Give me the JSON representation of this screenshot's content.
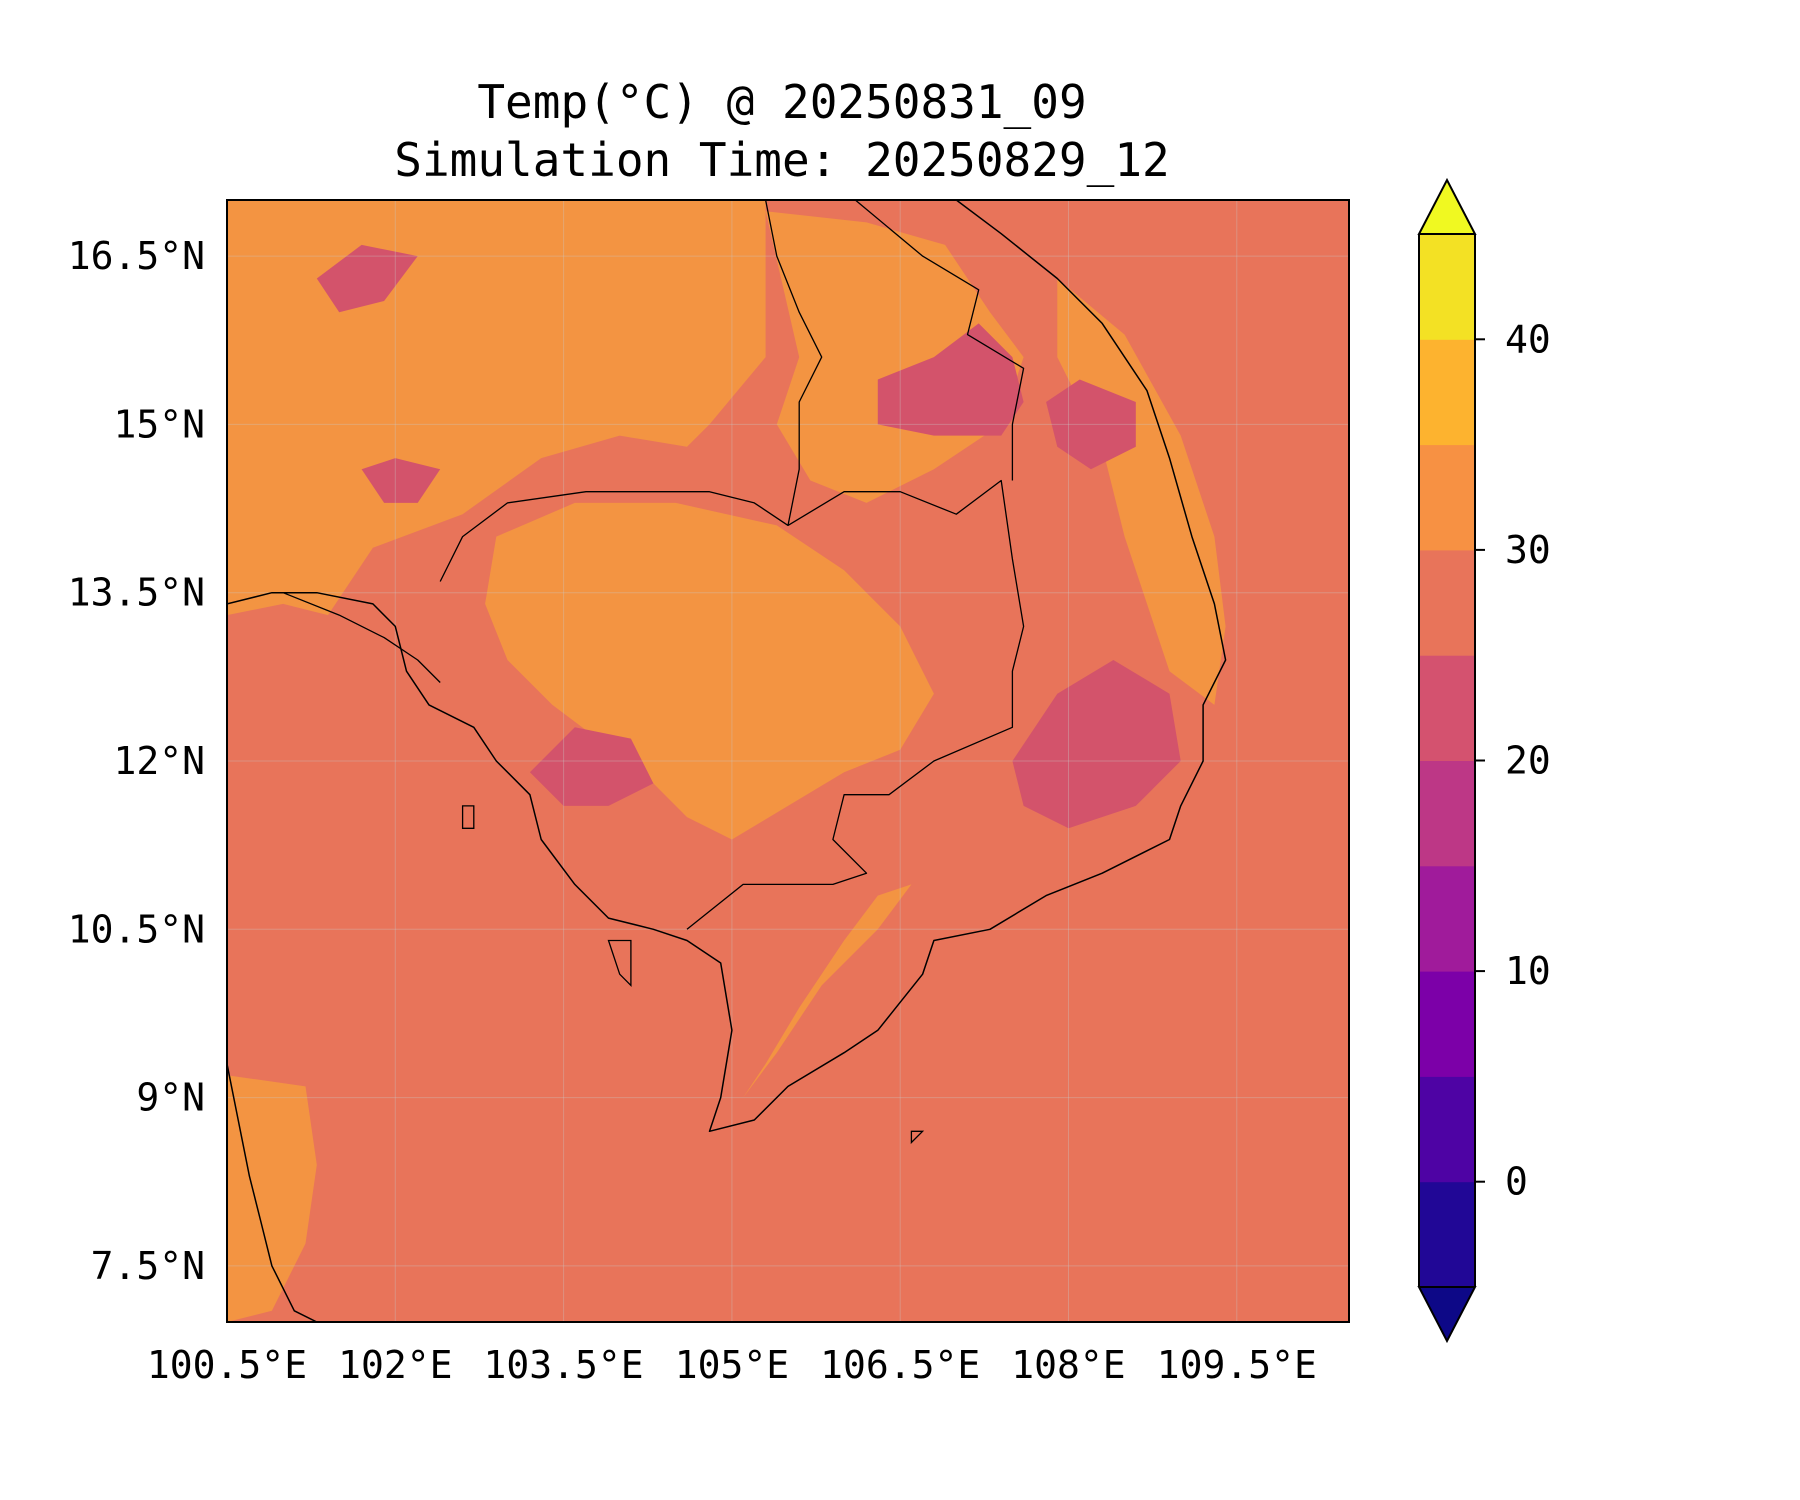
{
  "title": {
    "line1": "Temp(°C) @ 20250831_09",
    "line2": "Simulation Time: 20250829_12"
  },
  "map": {
    "extent": {
      "lon": [
        100.5,
        110.5
      ],
      "lat": [
        7.0,
        17.0
      ]
    },
    "lon_ticks": [
      {
        "value": 100.5,
        "label": "100.5°E"
      },
      {
        "value": 102.0,
        "label": "102°E"
      },
      {
        "value": 103.5,
        "label": "103.5°E"
      },
      {
        "value": 105.0,
        "label": "105°E"
      },
      {
        "value": 106.5,
        "label": "106.5°E"
      },
      {
        "value": 108.0,
        "label": "108°E"
      },
      {
        "value": 109.5,
        "label": "109.5°E"
      }
    ],
    "lat_ticks": [
      {
        "value": 16.5,
        "label": "16.5°N"
      },
      {
        "value": 15.0,
        "label": "15°N"
      },
      {
        "value": 13.5,
        "label": "13.5°N"
      },
      {
        "value": 12.0,
        "label": "12°N"
      },
      {
        "value": 10.5,
        "label": "10.5°N"
      },
      {
        "value": 9.0,
        "label": "9°N"
      },
      {
        "value": 7.5,
        "label": "7.5°N"
      }
    ],
    "gridlines": true,
    "background_level_color": "#e8745a",
    "features": [
      {
        "name": "warm-region-thailand-north",
        "level": "30-35",
        "color": "#f39442",
        "ring": [
          [
            100.5,
            17.0
          ],
          [
            105.3,
            17.0
          ],
          [
            105.3,
            15.6
          ],
          [
            104.8,
            15.0
          ],
          [
            104.6,
            14.8
          ],
          [
            104.0,
            14.9
          ],
          [
            103.3,
            14.7
          ],
          [
            102.6,
            14.2
          ],
          [
            101.8,
            13.9
          ],
          [
            101.4,
            13.3
          ],
          [
            101.0,
            13.4
          ],
          [
            100.5,
            13.3
          ]
        ]
      },
      {
        "name": "warm-region-cambodia",
        "level": "30-35",
        "color": "#f39442",
        "ring": [
          [
            102.9,
            14.0
          ],
          [
            103.6,
            14.3
          ],
          [
            104.5,
            14.3
          ],
          [
            105.4,
            14.1
          ],
          [
            106.0,
            13.7
          ],
          [
            106.5,
            13.2
          ],
          [
            106.8,
            12.6
          ],
          [
            106.5,
            12.1
          ],
          [
            106.0,
            11.9
          ],
          [
            105.5,
            11.6
          ],
          [
            105.0,
            11.3
          ],
          [
            104.6,
            11.5
          ],
          [
            104.3,
            11.8
          ],
          [
            103.8,
            12.2
          ],
          [
            103.4,
            12.5
          ],
          [
            103.0,
            12.9
          ],
          [
            102.8,
            13.4
          ]
        ]
      },
      {
        "name": "warm-region-laos",
        "level": "30-35",
        "color": "#f39442",
        "ring": [
          [
            105.3,
            16.9
          ],
          [
            106.2,
            16.8
          ],
          [
            106.9,
            16.6
          ],
          [
            107.3,
            16.0
          ],
          [
            107.6,
            15.6
          ],
          [
            107.4,
            15.0
          ],
          [
            106.8,
            14.6
          ],
          [
            106.2,
            14.3
          ],
          [
            105.7,
            14.5
          ],
          [
            105.4,
            15.0
          ],
          [
            105.6,
            15.6
          ]
        ]
      },
      {
        "name": "warm-region-mekong-delta",
        "level": "30-35",
        "color": "#f39442",
        "ring": [
          [
            105.1,
            9.0
          ],
          [
            105.4,
            9.4
          ],
          [
            105.8,
            10.0
          ],
          [
            106.3,
            10.5
          ],
          [
            106.6,
            10.9
          ],
          [
            106.3,
            10.8
          ],
          [
            106.0,
            10.4
          ],
          [
            105.6,
            9.8
          ],
          [
            105.3,
            9.3
          ]
        ]
      },
      {
        "name": "warm-region-vietnam-coast",
        "level": "30-35",
        "color": "#f39442",
        "ring": [
          [
            107.9,
            16.3
          ],
          [
            108.5,
            15.8
          ],
          [
            109.0,
            14.9
          ],
          [
            109.3,
            14.0
          ],
          [
            109.4,
            13.2
          ],
          [
            109.3,
            12.5
          ],
          [
            108.9,
            12.8
          ],
          [
            108.7,
            13.4
          ],
          [
            108.5,
            14.0
          ],
          [
            108.3,
            14.8
          ],
          [
            107.9,
            15.6
          ]
        ]
      },
      {
        "name": "warm-region-southwest-coast",
        "level": "30-35",
        "color": "#f39442",
        "ring": [
          [
            100.5,
            9.2
          ],
          [
            101.2,
            9.1
          ],
          [
            101.3,
            8.4
          ],
          [
            101.2,
            7.7
          ],
          [
            100.9,
            7.1
          ],
          [
            100.5,
            7.0
          ]
        ]
      },
      {
        "name": "cool-region-laos",
        "level": "20-25",
        "color": "#d3536b",
        "ring": [
          [
            106.3,
            15.4
          ],
          [
            106.8,
            15.6
          ],
          [
            107.2,
            15.9
          ],
          [
            107.5,
            15.6
          ],
          [
            107.6,
            15.2
          ],
          [
            107.4,
            14.9
          ],
          [
            106.8,
            14.9
          ],
          [
            106.3,
            15.0
          ]
        ]
      },
      {
        "name": "cool-region-central-highlands",
        "level": "20-25",
        "color": "#d3536b",
        "ring": [
          [
            107.5,
            12.0
          ],
          [
            107.9,
            12.6
          ],
          [
            108.4,
            12.9
          ],
          [
            108.9,
            12.6
          ],
          [
            109.0,
            12.0
          ],
          [
            108.6,
            11.6
          ],
          [
            108.0,
            11.4
          ],
          [
            107.6,
            11.6
          ]
        ]
      },
      {
        "name": "cool-region-kontum",
        "level": "20-25",
        "color": "#d3536b",
        "ring": [
          [
            107.8,
            15.2
          ],
          [
            108.1,
            15.4
          ],
          [
            108.6,
            15.2
          ],
          [
            108.6,
            14.8
          ],
          [
            108.2,
            14.6
          ],
          [
            107.9,
            14.8
          ]
        ]
      },
      {
        "name": "cool-region-cardamom",
        "level": "20-25",
        "color": "#d3536b",
        "ring": [
          [
            103.2,
            11.9
          ],
          [
            103.6,
            12.3
          ],
          [
            104.1,
            12.2
          ],
          [
            104.3,
            11.8
          ],
          [
            103.9,
            11.6
          ],
          [
            103.5,
            11.6
          ]
        ]
      },
      {
        "name": "cool-region-thailand-north",
        "level": "20-25",
        "color": "#d3536b",
        "ring": [
          [
            101.3,
            16.3
          ],
          [
            101.7,
            16.6
          ],
          [
            102.2,
            16.5
          ],
          [
            101.9,
            16.1
          ],
          [
            101.5,
            16.0
          ]
        ]
      },
      {
        "name": "cool-region-thailand-central",
        "level": "20-25",
        "color": "#d3536b",
        "ring": [
          [
            101.7,
            14.6
          ],
          [
            102.0,
            14.7
          ],
          [
            102.4,
            14.6
          ],
          [
            102.2,
            14.3
          ],
          [
            101.9,
            14.3
          ]
        ]
      }
    ],
    "coastlines": [
      [
        [
          100.5,
          13.4
        ],
        [
          100.9,
          13.5
        ],
        [
          101.3,
          13.5
        ],
        [
          101.8,
          13.4
        ],
        [
          102.0,
          13.2
        ],
        [
          102.1,
          12.8
        ],
        [
          102.3,
          12.5
        ],
        [
          102.7,
          12.3
        ],
        [
          102.9,
          12.0
        ],
        [
          103.2,
          11.7
        ],
        [
          103.3,
          11.3
        ],
        [
          103.6,
          10.9
        ],
        [
          103.9,
          10.6
        ],
        [
          104.3,
          10.5
        ],
        [
          104.6,
          10.4
        ],
        [
          104.9,
          10.2
        ],
        [
          105.0,
          9.6
        ],
        [
          104.9,
          9.0
        ],
        [
          104.8,
          8.7
        ],
        [
          105.2,
          8.8
        ],
        [
          105.5,
          9.1
        ],
        [
          106.0,
          9.4
        ],
        [
          106.3,
          9.6
        ],
        [
          106.7,
          10.1
        ],
        [
          106.8,
          10.4
        ],
        [
          107.3,
          10.5
        ],
        [
          107.8,
          10.8
        ],
        [
          108.3,
          11.0
        ],
        [
          108.9,
          11.3
        ],
        [
          109.0,
          11.6
        ],
        [
          109.2,
          12.0
        ],
        [
          109.2,
          12.5
        ],
        [
          109.4,
          12.9
        ],
        [
          109.3,
          13.4
        ],
        [
          109.1,
          14.0
        ],
        [
          108.9,
          14.7
        ],
        [
          108.7,
          15.3
        ],
        [
          108.3,
          15.9
        ],
        [
          107.9,
          16.3
        ],
        [
          107.4,
          16.7
        ],
        [
          107.0,
          17.0
        ]
      ],
      [
        [
          100.5,
          9.3
        ],
        [
          100.6,
          8.8
        ],
        [
          100.7,
          8.3
        ],
        [
          100.8,
          7.9
        ],
        [
          100.9,
          7.5
        ],
        [
          101.1,
          7.1
        ],
        [
          101.3,
          7.0
        ]
      ]
    ],
    "borders": [
      [
        [
          102.4,
          13.6
        ],
        [
          102.6,
          14.0
        ],
        [
          103.0,
          14.3
        ],
        [
          103.7,
          14.4
        ],
        [
          104.3,
          14.4
        ],
        [
          104.8,
          14.4
        ],
        [
          105.2,
          14.3
        ],
        [
          105.5,
          14.1
        ],
        [
          106.0,
          14.4
        ],
        [
          106.5,
          14.4
        ],
        [
          107.0,
          14.2
        ],
        [
          107.4,
          14.5
        ],
        [
          107.5,
          13.8
        ],
        [
          107.6,
          13.2
        ],
        [
          107.5,
          12.8
        ],
        [
          107.5,
          12.3
        ],
        [
          106.8,
          12.0
        ],
        [
          106.4,
          11.7
        ],
        [
          106.0,
          11.7
        ],
        [
          105.9,
          11.3
        ],
        [
          106.2,
          11.0
        ],
        [
          105.9,
          10.9
        ],
        [
          105.1,
          10.9
        ],
        [
          104.6,
          10.5
        ]
      ],
      [
        [
          105.3,
          17.0
        ],
        [
          105.4,
          16.5
        ],
        [
          105.6,
          16.0
        ],
        [
          105.8,
          15.6
        ],
        [
          105.6,
          15.2
        ],
        [
          105.6,
          14.6
        ],
        [
          105.5,
          14.1
        ]
      ],
      [
        [
          106.1,
          17.0
        ],
        [
          106.7,
          16.5
        ],
        [
          107.2,
          16.2
        ],
        [
          107.1,
          15.8
        ],
        [
          107.6,
          15.5
        ],
        [
          107.5,
          15.0
        ],
        [
          107.5,
          14.5
        ]
      ],
      [
        [
          101.0,
          13.5
        ],
        [
          101.5,
          13.3
        ],
        [
          101.9,
          13.1
        ],
        [
          102.2,
          12.9
        ],
        [
          102.4,
          12.7
        ]
      ]
    ],
    "islands": [
      [
        [
          103.9,
          10.4
        ],
        [
          104.1,
          10.4
        ],
        [
          104.1,
          10.0
        ],
        [
          104.0,
          10.1
        ]
      ],
      [
        [
          106.6,
          8.7
        ],
        [
          106.7,
          8.7
        ],
        [
          106.6,
          8.6
        ]
      ],
      [
        [
          102.6,
          11.6
        ],
        [
          102.7,
          11.6
        ],
        [
          102.7,
          11.4
        ],
        [
          102.6,
          11.4
        ]
      ]
    ]
  },
  "colorbar": {
    "tick_labels": [
      "40",
      "30",
      "20",
      "10",
      "0"
    ],
    "tick_values": [
      40,
      30,
      20,
      10,
      0
    ],
    "range": [
      -5,
      45
    ],
    "extend": "both",
    "levels": [
      {
        "from": -5,
        "to": 0,
        "color": "#210796"
      },
      {
        "from": 0,
        "to": 5,
        "color": "#4e03a4"
      },
      {
        "from": 5,
        "to": 10,
        "color": "#7c00a8"
      },
      {
        "from": 10,
        "to": 15,
        "color": "#a01b9b"
      },
      {
        "from": 15,
        "to": 20,
        "color": "#bd3786"
      },
      {
        "from": 20,
        "to": 25,
        "color": "#d4526f"
      },
      {
        "from": 25,
        "to": 30,
        "color": "#e8745a"
      },
      {
        "from": 30,
        "to": 35,
        "color": "#f79143"
      },
      {
        "from": 35,
        "to": 40,
        "color": "#fdb32f"
      },
      {
        "from": 40,
        "to": 45,
        "color": "#f3e124"
      }
    ],
    "under_color": "#0d0887",
    "over_color": "#f0f921"
  }
}
